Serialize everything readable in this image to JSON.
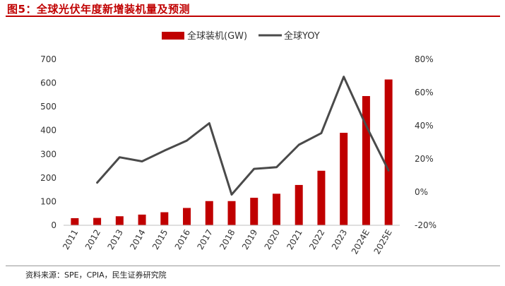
{
  "figure": {
    "title": "图5：全球光伏年度新增装机量及预测",
    "source": "资料来源：SPE，CPIA，民生证券研究院"
  },
  "colors": {
    "title": "#c00000",
    "bar": "#c00000",
    "line": "#4a4a4a",
    "axis": "#bfbfbf",
    "text": "#333333"
  },
  "chart_data": {
    "type": "bar+line",
    "categories": [
      "2011",
      "2012",
      "2013",
      "2014",
      "2015",
      "2016",
      "2017",
      "2018",
      "2019",
      "2020",
      "2021",
      "2022",
      "2023",
      "2024E",
      "2025E"
    ],
    "series": [
      {
        "name": "全球装机(GW)",
        "type": "bar",
        "axis": "left",
        "values": [
          30,
          31,
          38,
          45,
          55,
          73,
          102,
          102,
          116,
          133,
          170,
          230,
          390,
          545,
          615
        ]
      },
      {
        "name": "全球YOY",
        "type": "line",
        "axis": "right",
        "values": [
          null,
          5.7,
          21,
          18.5,
          25,
          31,
          41.5,
          -1.5,
          14,
          15,
          28.5,
          35.5,
          69.5,
          40,
          13
        ]
      }
    ],
    "y_left": {
      "min": 0,
      "max": 700,
      "ticks": [
        "0",
        "100",
        "200",
        "300",
        "400",
        "500",
        "600",
        "700"
      ]
    },
    "y_right": {
      "min": -20,
      "max": 80,
      "ticks": [
        "-20%",
        "0%",
        "20%",
        "40%",
        "60%",
        "80%"
      ]
    },
    "legend_position": "top-center"
  }
}
